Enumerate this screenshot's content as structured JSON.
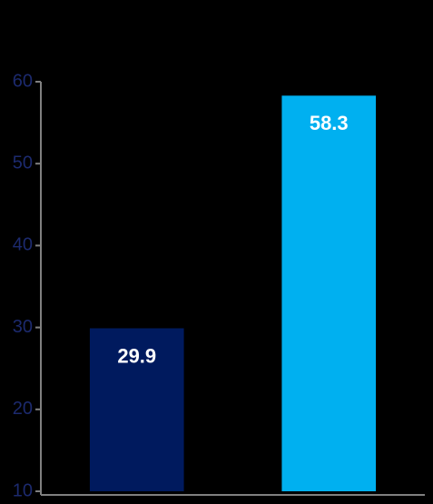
{
  "chart_data": {
    "type": "bar",
    "categories": [
      null,
      null
    ],
    "values": [
      29.9,
      58.3
    ],
    "colors": [
      "#001a5e",
      "#00b0f0"
    ],
    "ylim": [
      10,
      60
    ],
    "yticks": [
      10,
      20,
      30,
      40,
      50,
      60
    ],
    "grid": false
  }
}
